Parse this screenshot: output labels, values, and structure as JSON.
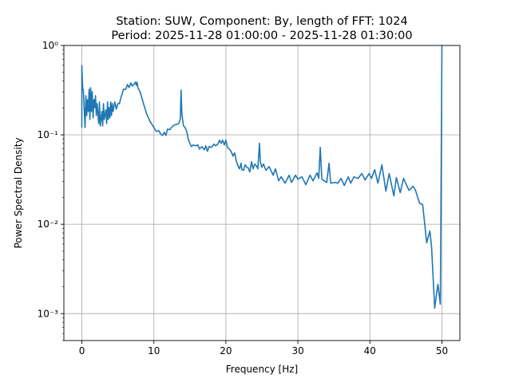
{
  "chart_data": {
    "type": "line",
    "title_line1": "Station: SUW, Component: By, length of FFT: 1024",
    "title_line2": "Period: 2025-11-28 01:00:00 - 2025-11-28 01:30:00",
    "xlabel": "Frequency [Hz]",
    "ylabel": "Power Spectral Density",
    "xscale": "linear",
    "yscale": "log",
    "xlim": [
      -2.5,
      52.5
    ],
    "ylim": [
      0.0005,
      1
    ],
    "grid": true,
    "xticks": [
      0,
      10,
      20,
      30,
      40,
      50
    ],
    "xtick_labels": [
      "0",
      "10",
      "20",
      "30",
      "40",
      "50"
    ],
    "yticks": [
      0.001,
      0.01,
      0.1,
      1
    ],
    "ytick_labels": [
      "10⁻³",
      "10⁻²",
      "10⁻¹",
      "10⁰"
    ],
    "line_color": "#1f77b4",
    "series": [
      {
        "name": "PSD",
        "frequency": [
          0,
          0,
          0.11,
          0.22,
          0.44,
          0.56,
          0.67,
          0.78,
          0.89,
          1.0,
          1.11,
          1.22,
          1.33,
          1.44,
          1.56,
          1.67,
          1.78,
          1.89,
          2.0,
          2.11,
          2.33,
          2.44,
          2.56,
          2.78,
          2.89,
          3.0,
          3.11,
          3.33,
          3.44,
          3.56,
          3.67,
          3.78,
          3.89,
          4.0,
          4.11,
          4.22,
          4.33,
          4.56,
          4.78,
          5.0,
          5.22,
          5.44,
          5.78,
          6.11,
          6.33,
          6.56,
          6.78,
          7.0,
          7.22,
          7.44,
          7.56,
          7.67,
          7.78,
          8.11,
          8.56,
          9.0,
          9.44,
          10.0,
          10.33,
          10.67,
          11.0,
          11.22,
          11.44,
          11.67,
          11.89,
          12.22,
          12.44,
          12.78,
          13.22,
          13.44,
          13.67,
          13.78,
          13.89,
          14.11,
          14.33,
          14.56,
          14.78,
          15.0,
          15.22,
          15.44,
          15.78,
          16.11,
          16.33,
          16.67,
          17.0,
          17.22,
          17.44,
          17.67,
          18.0,
          18.33,
          18.56,
          18.89,
          19.11,
          19.33,
          19.56,
          19.78,
          20.0,
          20.22,
          20.56,
          20.78,
          21.0,
          21.22,
          21.44,
          21.67,
          21.89,
          22.11,
          22.22,
          22.44,
          22.67,
          22.89,
          23.11,
          23.33,
          23.56,
          23.78,
          24.0,
          24.22,
          24.44,
          24.67,
          24.78,
          25.0,
          25.22,
          25.56,
          26.0,
          26.56,
          26.89,
          27.33,
          27.67,
          28.22,
          28.78,
          29.11,
          29.67,
          30.0,
          30.56,
          31.11,
          31.67,
          32.11,
          32.67,
          32.89,
          33.11,
          33.33,
          34.0,
          34.33,
          34.56,
          35.22,
          35.56,
          36.0,
          36.44,
          37.0,
          37.33,
          37.78,
          38.33,
          38.89,
          39.33,
          39.89,
          40.22,
          40.67,
          41.11,
          41.67,
          42.22,
          42.67,
          43.33,
          43.67,
          44.22,
          44.67,
          45.44,
          46.0,
          46.33,
          46.89,
          47.33,
          47.89,
          48.33,
          48.56,
          49.0,
          49.44,
          49.78,
          50.0
        ],
        "log10_psd": [
          -0.917,
          -0.223,
          -0.472,
          -0.516,
          -0.917,
          -0.561,
          -0.784,
          -0.606,
          -0.739,
          -0.49,
          -0.828,
          -0.472,
          -0.739,
          -0.516,
          -0.81,
          -0.606,
          -0.695,
          -0.561,
          -0.784,
          -0.65,
          -0.873,
          -0.632,
          -0.899,
          -0.739,
          -0.899,
          -0.65,
          -0.828,
          -0.721,
          -0.873,
          -0.632,
          -0.828,
          -0.695,
          -0.81,
          -0.632,
          -0.784,
          -0.65,
          -0.739,
          -0.632,
          -0.712,
          -0.65,
          -0.65,
          -0.579,
          -0.49,
          -0.49,
          -0.436,
          -0.472,
          -0.419,
          -0.454,
          -0.436,
          -0.41,
          -0.445,
          -0.41,
          -0.472,
          -0.525,
          -0.65,
          -0.766,
          -0.846,
          -0.917,
          -0.962,
          -0.953,
          -0.997,
          -1.006,
          -0.971,
          -1.006,
          -0.935,
          -0.944,
          -0.917,
          -0.891,
          -0.882,
          -0.873,
          -0.828,
          -0.499,
          -0.766,
          -0.899,
          -0.917,
          -0.962,
          -1.051,
          -1.095,
          -1.131,
          -1.113,
          -1.122,
          -1.113,
          -1.158,
          -1.131,
          -1.167,
          -1.122,
          -1.184,
          -1.131,
          -1.14,
          -1.104,
          -1.122,
          -1.104,
          -1.06,
          -1.095,
          -1.06,
          -1.113,
          -1.06,
          -1.14,
          -1.167,
          -1.193,
          -1.238,
          -1.202,
          -1.291,
          -1.345,
          -1.38,
          -1.318,
          -1.389,
          -1.398,
          -1.336,
          -1.362,
          -1.371,
          -1.416,
          -1.3,
          -1.38,
          -1.327,
          -1.345,
          -1.38,
          -1.095,
          -1.3,
          -1.362,
          -1.327,
          -1.398,
          -1.354,
          -1.452,
          -1.38,
          -1.514,
          -1.469,
          -1.541,
          -1.452,
          -1.532,
          -1.452,
          -1.496,
          -1.469,
          -1.558,
          -1.452,
          -1.514,
          -1.425,
          -1.487,
          -1.14,
          -1.496,
          -1.532,
          -1.318,
          -1.541,
          -1.532,
          -1.541,
          -1.487,
          -1.567,
          -1.469,
          -1.541,
          -1.469,
          -1.487,
          -1.434,
          -1.505,
          -1.434,
          -1.487,
          -1.389,
          -1.541,
          -1.336,
          -1.63,
          -1.434,
          -1.683,
          -1.478,
          -1.647,
          -1.487,
          -1.621,
          -1.576,
          -1.621,
          -1.763,
          -1.781,
          -2.208,
          -2.075,
          -2.253,
          -2.939,
          -2.672,
          -2.894,
          0.0
        ]
      }
    ]
  }
}
